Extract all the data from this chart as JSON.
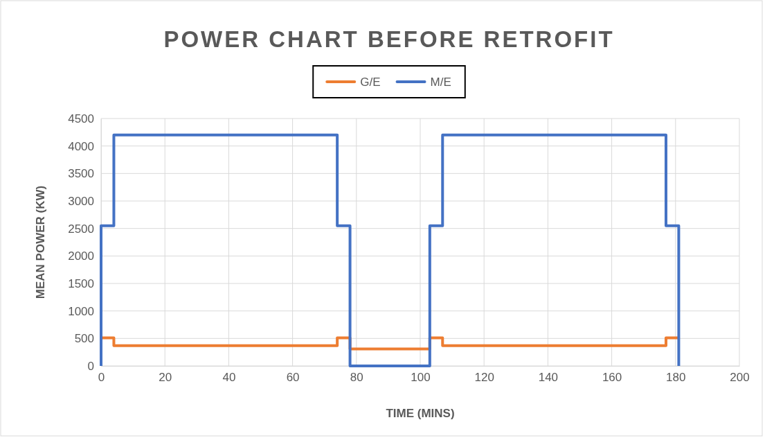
{
  "chart_data": {
    "type": "line",
    "title": "POWER CHART BEFORE RETROFIT",
    "xlabel": "TIME (MINS)",
    "ylabel": "MEAN POWER (KW)",
    "xlim": [
      0,
      200
    ],
    "xticks": [
      0,
      20,
      40,
      60,
      80,
      100,
      120,
      140,
      160,
      180,
      200
    ],
    "ylim": [
      0,
      4500
    ],
    "yticks": [
      0,
      500,
      1000,
      1500,
      2000,
      2500,
      3000,
      3500,
      4000,
      4500
    ],
    "grid": true,
    "legend": "top",
    "marker": "none",
    "line_style": "solid",
    "series": [
      {
        "name": "G/E",
        "color": "#ed7d31",
        "x": [
          0,
          4,
          4,
          74,
          74,
          78,
          78,
          103,
          103,
          107,
          107,
          177,
          177,
          181
        ],
        "values": [
          510,
          510,
          370,
          370,
          510,
          510,
          310,
          310,
          510,
          510,
          370,
          370,
          510,
          510
        ]
      },
      {
        "name": "M/E",
        "color": "#4472c4",
        "x": [
          0,
          0,
          4,
          4,
          74,
          74,
          78,
          78,
          103,
          103,
          107,
          107,
          177,
          177,
          181,
          181
        ],
        "values": [
          0,
          2550,
          2550,
          4200,
          4200,
          2550,
          2550,
          0,
          0,
          2550,
          2550,
          4200,
          4200,
          2550,
          2550,
          0
        ]
      }
    ]
  }
}
